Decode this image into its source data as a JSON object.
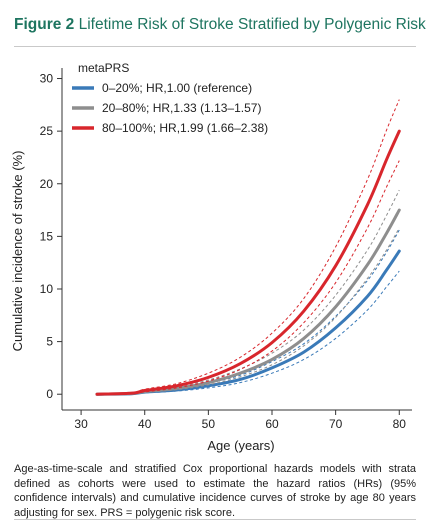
{
  "figure": {
    "label": "Figure 2",
    "title": "Lifetime Risk of Stroke Stratified by Polygenic Risk",
    "caption": "Age-as-time-scale and stratified Cox proportional hazards models with strata defined as cohorts were used to estimate the hazard ratios (HRs) (95% confidence intervals) and cumulative incidence curves of stroke by age 80 years adjusting for sex. PRS = polygenic risk score."
  },
  "chart_data": {
    "type": "line",
    "xlabel": "Age (years)",
    "ylabel": "Cumulative incidence of stroke (%)",
    "xlim": [
      27,
      82
    ],
    "ylim": [
      -1.5,
      31
    ],
    "xticks": [
      30,
      40,
      50,
      60,
      70,
      80
    ],
    "yticks": [
      0,
      5,
      10,
      15,
      20,
      25,
      30
    ],
    "grid": false,
    "legend": {
      "title": "metaPRS",
      "position": "top-left"
    },
    "x": [
      32.5,
      38,
      40,
      45,
      50,
      55,
      60,
      65,
      70,
      75,
      78,
      80
    ],
    "series": [
      {
        "name": "0–20%; HR,1.00 (reference)",
        "color": "#3a7ab8",
        "values": [
          0,
          0.05,
          0.2,
          0.4,
          0.8,
          1.4,
          2.5,
          4.0,
          6.3,
          9.3,
          11.8,
          13.6
        ],
        "lower": [
          0,
          0.03,
          0.12,
          0.3,
          0.6,
          1.1,
          2.0,
          3.3,
          5.3,
          8.0,
          10.2,
          11.7
        ],
        "upper": [
          0,
          0.08,
          0.3,
          0.55,
          1.05,
          1.8,
          3.1,
          4.8,
          7.4,
          10.8,
          13.5,
          15.6
        ]
      },
      {
        "name": "20–80%; HR,1.33 (1.13–1.57)",
        "color": "#8e8e8e",
        "values": [
          0,
          0.08,
          0.25,
          0.55,
          1.1,
          2.0,
          3.3,
          5.3,
          8.3,
          12.3,
          15.3,
          17.5
        ],
        "lower": [
          0,
          0.05,
          0.17,
          0.43,
          0.9,
          1.65,
          2.8,
          4.6,
          7.3,
          11.0,
          13.7,
          15.8
        ],
        "upper": [
          0,
          0.11,
          0.33,
          0.7,
          1.35,
          2.4,
          3.9,
          6.1,
          9.4,
          13.7,
          17.0,
          19.4
        ]
      },
      {
        "name": "80–100%; HR,1.99 (1.66–2.38)",
        "color": "#d8262c",
        "values": [
          0,
          0.1,
          0.35,
          0.8,
          1.6,
          2.9,
          4.9,
          7.9,
          12.2,
          18.0,
          22.3,
          25.0
        ],
        "lower": [
          0,
          0.06,
          0.22,
          0.6,
          1.25,
          2.35,
          4.1,
          6.8,
          10.6,
          15.8,
          19.7,
          22.2
        ],
        "upper": [
          0,
          0.14,
          0.48,
          1.0,
          2.0,
          3.5,
          5.8,
          9.1,
          14.0,
          20.4,
          25.1,
          28.0
        ]
      }
    ]
  }
}
